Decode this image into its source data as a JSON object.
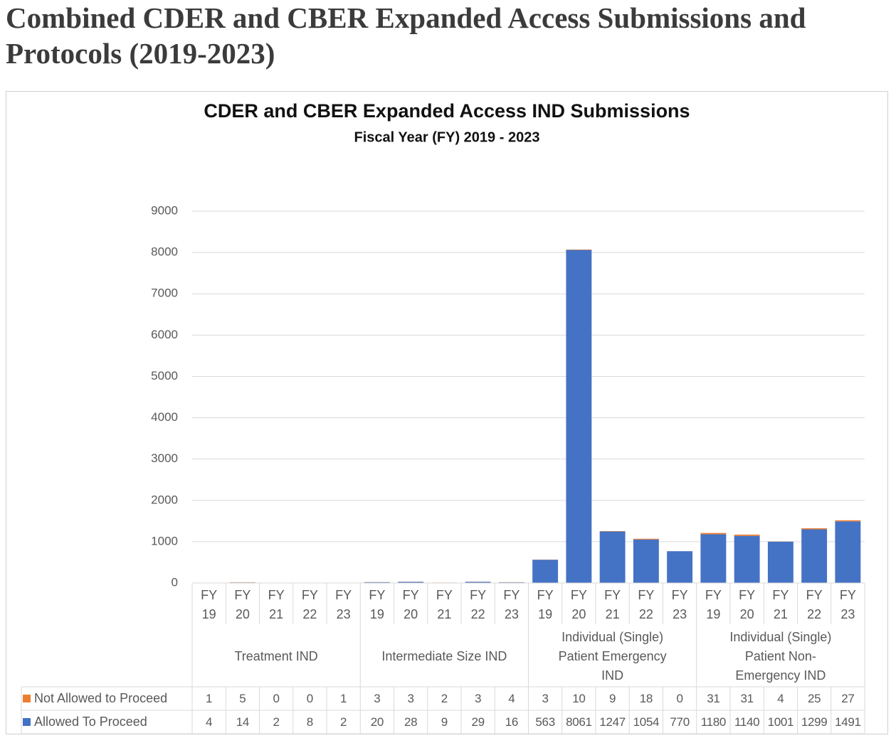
{
  "heading": "Combined CDER and CBER Expanded Access Submissions and Protocols (2019-2023)",
  "chart_data": {
    "type": "stacked_bar",
    "title": "CDER and CBER Expanded Access IND Submissions",
    "subtitle": "Fiscal Year (FY) 2019 - 2023",
    "categories": [
      "FY 19",
      "FY 20",
      "FY 21",
      "FY 22",
      "FY 23",
      "FY 19",
      "FY 20",
      "FY 21",
      "FY 22",
      "FY 23",
      "FY 19",
      "FY 20",
      "FY 21",
      "FY 22",
      "FY 23",
      "FY 19",
      "FY 20",
      "FY 21",
      "FY 22",
      "FY 23"
    ],
    "groups": [
      {
        "name": "Treatment IND",
        "size": 5
      },
      {
        "name": "Intermediate Size IND",
        "size": 5
      },
      {
        "name": "Individual (Single) Patient Emergency IND",
        "size": 5
      },
      {
        "name": "Individual (Single) Patient Non-Emergency IND",
        "size": 5
      }
    ],
    "series": [
      {
        "name": "Not Allowed to Proceed",
        "color": "#ed7d31",
        "values": [
          1,
          5,
          0,
          0,
          1,
          3,
          3,
          2,
          3,
          4,
          3,
          10,
          9,
          18,
          0,
          31,
          31,
          4,
          25,
          27
        ]
      },
      {
        "name": "Allowed To Proceed",
        "color": "#4472c4",
        "values": [
          4,
          14,
          2,
          8,
          2,
          20,
          28,
          9,
          29,
          16,
          563,
          8061,
          1247,
          1054,
          770,
          1180,
          1140,
          1001,
          1299,
          1491
        ]
      }
    ],
    "ylim": [
      0,
      9000
    ],
    "yticks": [
      0,
      1000,
      2000,
      3000,
      4000,
      5000,
      6000,
      7000,
      8000,
      9000
    ],
    "grid": true,
    "data_table": true
  }
}
